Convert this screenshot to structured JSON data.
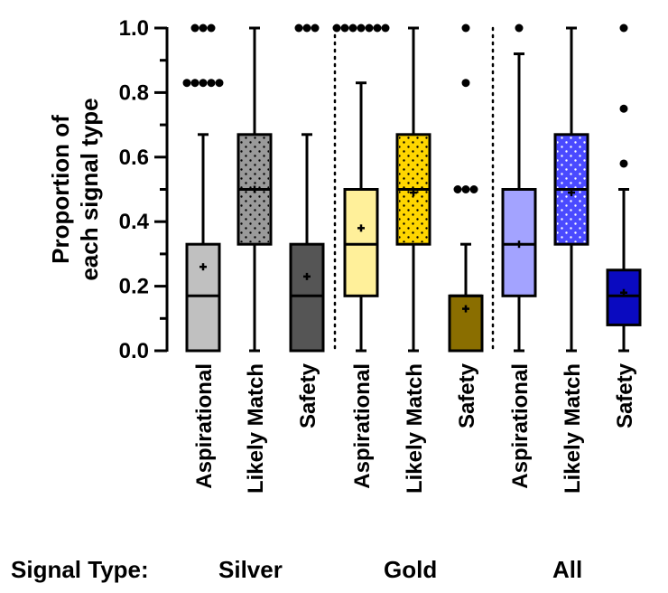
{
  "chart_data": {
    "type": "box",
    "ylabel": "Proportion of each signal type",
    "ylim": [
      0,
      1.0
    ],
    "yticks": [
      "0.0",
      "0.2",
      "0.4",
      "0.6",
      "0.8",
      "1.0"
    ],
    "ytick_values": [
      0,
      0.2,
      0.4,
      0.6,
      0.8,
      1.0
    ],
    "group_axis_title": "Signal Type:",
    "groups": [
      {
        "name": "Silver",
        "boxes": [
          {
            "category": "Aspirational",
            "color": "#c0c0c0",
            "pattern": "none",
            "min": 0.0,
            "q1": 0.0,
            "median": 0.17,
            "q3": 0.33,
            "max": 0.67,
            "mean": 0.26,
            "outliers": [
              0.83,
              0.83,
              0.83,
              0.83,
              0.83,
              1.0,
              1.0,
              1.0
            ]
          },
          {
            "category": "Likely Match",
            "color": "#9a9a9a",
            "pattern": "dots",
            "min": 0.0,
            "q1": 0.33,
            "median": 0.5,
            "q3": 0.67,
            "max": 1.0,
            "mean": 0.5,
            "outliers": []
          },
          {
            "category": "Safety",
            "color": "#555555",
            "pattern": "none",
            "min": 0.0,
            "q1": 0.0,
            "median": 0.17,
            "q3": 0.33,
            "max": 0.67,
            "mean": 0.23,
            "outliers": [
              1.0,
              1.0,
              1.0
            ]
          }
        ]
      },
      {
        "name": "Gold",
        "boxes": [
          {
            "category": "Aspirational",
            "color": "#fff09a",
            "pattern": "none",
            "min": 0.0,
            "q1": 0.17,
            "median": 0.33,
            "q3": 0.5,
            "max": 0.83,
            "mean": 0.38,
            "outliers": [
              1.0,
              1.0,
              1.0,
              1.0,
              1.0,
              1.0,
              1.0
            ]
          },
          {
            "category": "Likely Match",
            "color": "#ffd600",
            "pattern": "dots",
            "min": 0.0,
            "q1": 0.33,
            "median": 0.5,
            "q3": 0.67,
            "max": 1.0,
            "mean": 0.49,
            "outliers": []
          },
          {
            "category": "Safety",
            "color": "#8a6e00",
            "pattern": "none",
            "min": 0.0,
            "q1": 0.0,
            "median": 0.17,
            "q3": 0.17,
            "max": 0.33,
            "mean": 0.13,
            "outliers": [
              0.5,
              0.5,
              0.5,
              0.83,
              1.0
            ]
          }
        ]
      },
      {
        "name": "All",
        "boxes": [
          {
            "category": "Aspirational",
            "color": "#a3a3ff",
            "pattern": "none",
            "min": 0.0,
            "q1": 0.17,
            "median": 0.33,
            "q3": 0.5,
            "max": 0.92,
            "mean": 0.33,
            "outliers": [
              1.0
            ]
          },
          {
            "category": "Likely Match",
            "color": "#4a4aff",
            "pattern": "dots",
            "min": 0.0,
            "q1": 0.33,
            "median": 0.5,
            "q3": 0.67,
            "max": 1.0,
            "mean": 0.49,
            "outliers": []
          },
          {
            "category": "Safety",
            "color": "#0a0ac0",
            "pattern": "none",
            "min": 0.0,
            "q1": 0.08,
            "median": 0.17,
            "q3": 0.25,
            "max": 0.5,
            "mean": 0.18,
            "outliers": [
              0.58,
              0.75,
              1.0
            ]
          }
        ]
      }
    ],
    "grid": false,
    "separators": "dotted vertical lines between groups"
  }
}
